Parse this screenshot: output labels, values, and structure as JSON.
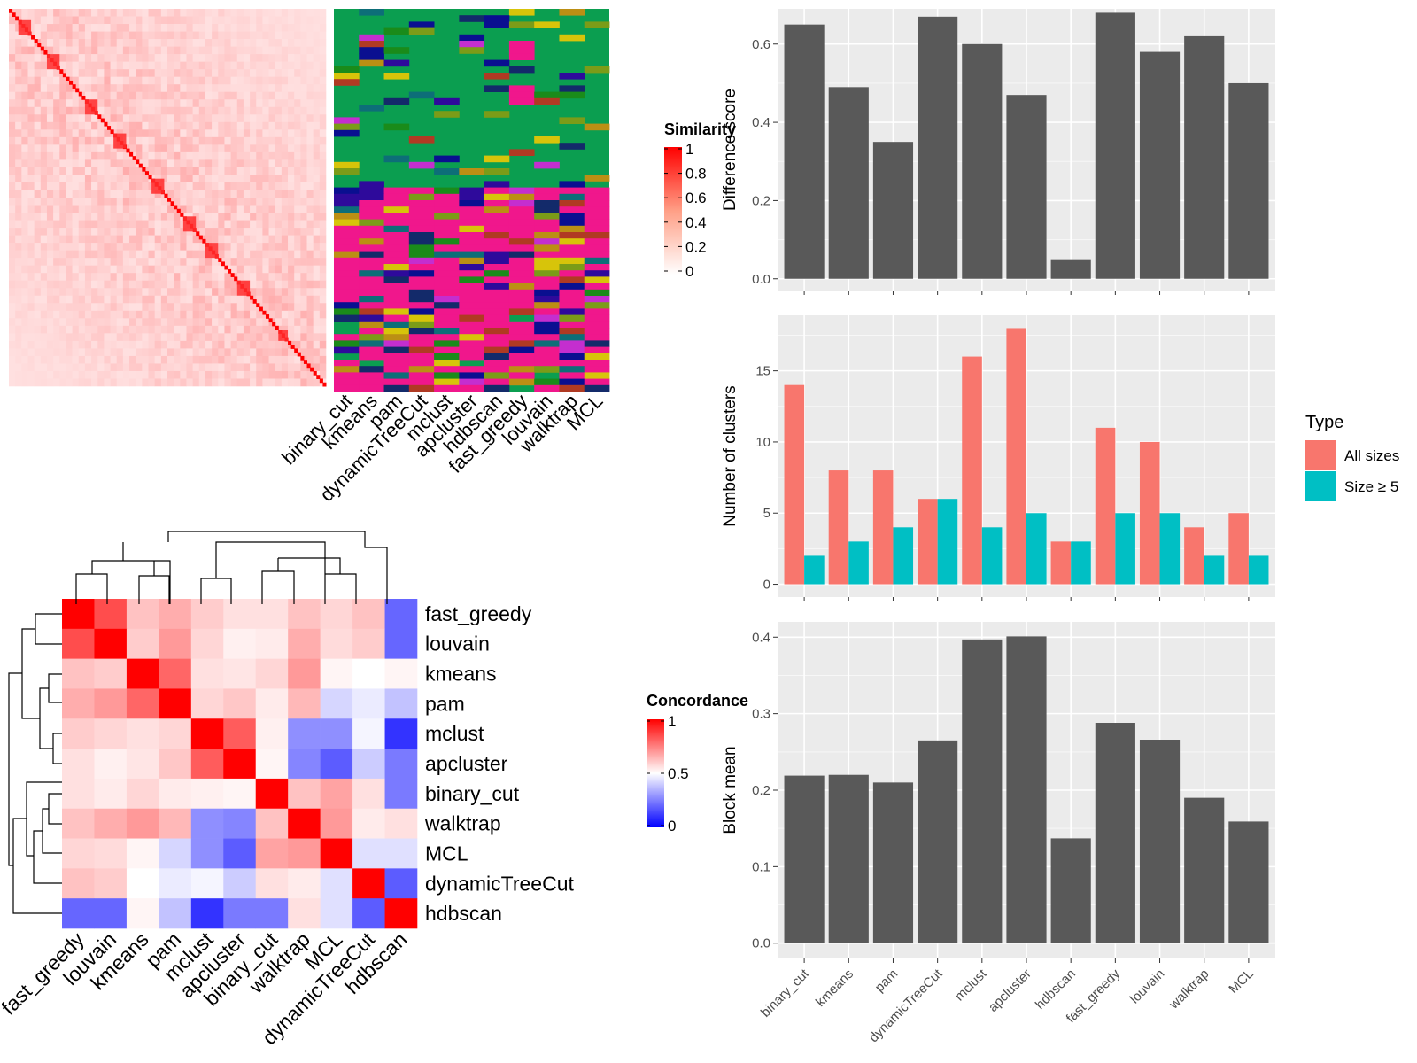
{
  "chart_data": [
    {
      "type": "heatmap",
      "panel": "similarity-matrix",
      "legend_title": "Similarity",
      "legend_ticks": [
        "1",
        "0.8",
        "0.6",
        "0.4",
        "0.2",
        "0"
      ],
      "colors": {
        "low": "#ffffff",
        "high": "#ff0000"
      },
      "n_rows": 100
    },
    {
      "type": "heatmap",
      "panel": "cluster-membership",
      "columns": [
        "binary_cut",
        "kmeans",
        "pam",
        "dynamicTreeCut",
        "mclust",
        "apcluster",
        "hdbscan",
        "fast_greedy",
        "louvain",
        "walktrap",
        "MCL"
      ],
      "palette": [
        "#0b9e50",
        "#f0178c",
        "#0a0f90",
        "#132a6a",
        "#0d6e78",
        "#d7c40a",
        "#c42ecf",
        "#b03a23",
        "#7b9c18",
        "#1a8b1a",
        "#2e0a9b",
        "#bb8f14"
      ]
    },
    {
      "type": "heatmap",
      "panel": "concordance",
      "legend_title": "Concordance",
      "legend_ticks": [
        "1",
        "0.5",
        "0"
      ],
      "rows": [
        "fast_greedy",
        "louvain",
        "kmeans",
        "pam",
        "mclust",
        "apcluster",
        "binary_cut",
        "walktrap",
        "MCL",
        "dynamicTreeCut",
        "hdbscan"
      ],
      "columns": [
        "fast_greedy",
        "louvain",
        "kmeans",
        "pam",
        "mclust",
        "apcluster",
        "binary_cut",
        "walktrap",
        "MCL",
        "dynamicTreeCut",
        "hdbscan"
      ],
      "values": [
        [
          1.0,
          0.85,
          0.62,
          0.66,
          0.6,
          0.56,
          0.56,
          0.62,
          0.58,
          0.62,
          0.2
        ],
        [
          0.85,
          1.0,
          0.6,
          0.7,
          0.58,
          0.53,
          0.54,
          0.66,
          0.57,
          0.6,
          0.2
        ],
        [
          0.62,
          0.6,
          1.0,
          0.8,
          0.56,
          0.55,
          0.58,
          0.7,
          0.52,
          0.5,
          0.52
        ],
        [
          0.66,
          0.7,
          0.8,
          1.0,
          0.58,
          0.61,
          0.54,
          0.64,
          0.42,
          0.46,
          0.38
        ],
        [
          0.6,
          0.58,
          0.56,
          0.58,
          1.0,
          0.82,
          0.53,
          0.28,
          0.28,
          0.48,
          0.1
        ],
        [
          0.56,
          0.53,
          0.55,
          0.61,
          0.82,
          1.0,
          0.52,
          0.26,
          0.18,
          0.4,
          0.24
        ],
        [
          0.56,
          0.54,
          0.58,
          0.54,
          0.53,
          0.52,
          1.0,
          0.62,
          0.68,
          0.56,
          0.24
        ],
        [
          0.62,
          0.66,
          0.7,
          0.64,
          0.28,
          0.26,
          0.62,
          1.0,
          0.7,
          0.54,
          0.56
        ],
        [
          0.58,
          0.57,
          0.52,
          0.42,
          0.28,
          0.18,
          0.68,
          0.7,
          1.0,
          0.44,
          0.44
        ],
        [
          0.62,
          0.6,
          0.5,
          0.46,
          0.48,
          0.4,
          0.56,
          0.54,
          0.44,
          1.0,
          0.18
        ],
        [
          0.2,
          0.2,
          0.52,
          0.38,
          0.1,
          0.24,
          0.24,
          0.56,
          0.44,
          0.18,
          1.0
        ]
      ]
    },
    {
      "type": "bar",
      "categories": [
        "binary_cut",
        "kmeans",
        "pam",
        "dynamicTreeCut",
        "mclust",
        "apcluster",
        "hdbscan",
        "fast_greedy",
        "louvain",
        "walktrap",
        "MCL"
      ],
      "values": [
        0.65,
        0.49,
        0.35,
        0.67,
        0.6,
        0.47,
        0.05,
        0.68,
        0.58,
        0.62,
        0.5
      ],
      "ylabel": "Difference score",
      "ylim": [
        -0.03,
        0.69
      ],
      "yticks": [
        "0.0",
        "0.2",
        "0.4",
        "0.6"
      ],
      "grid": true
    },
    {
      "type": "bar",
      "categories": [
        "binary_cut",
        "kmeans",
        "pam",
        "dynamicTreeCut",
        "mclust",
        "apcluster",
        "hdbscan",
        "fast_greedy",
        "louvain",
        "walktrap",
        "MCL"
      ],
      "series": [
        {
          "name": "All sizes",
          "color": "#f8766d",
          "values": [
            14,
            8,
            8,
            6,
            16,
            18,
            3,
            11,
            10,
            4,
            5
          ]
        },
        {
          "name": "Size ≥ 5",
          "color": "#00bfc4",
          "values": [
            2,
            3,
            4,
            6,
            4,
            5,
            3,
            5,
            5,
            2,
            2
          ]
        }
      ],
      "ylabel": "Number of clusters",
      "ylim": [
        -0.9,
        18.9
      ],
      "yticks": [
        "0",
        "5",
        "10",
        "15"
      ],
      "legend_title": "Type",
      "legend_position": "right",
      "grid": true
    },
    {
      "type": "bar",
      "categories": [
        "binary_cut",
        "kmeans",
        "pam",
        "dynamicTreeCut",
        "mclust",
        "apcluster",
        "hdbscan",
        "fast_greedy",
        "louvain",
        "walktrap",
        "MCL"
      ],
      "values": [
        0.219,
        0.22,
        0.21,
        0.265,
        0.397,
        0.401,
        0.137,
        0.288,
        0.266,
        0.19,
        0.159
      ],
      "ylabel": "Block mean",
      "ylim": [
        -0.02,
        0.42
      ],
      "yticks": [
        "0.0",
        "0.1",
        "0.2",
        "0.3",
        "0.4"
      ],
      "grid": true
    }
  ]
}
